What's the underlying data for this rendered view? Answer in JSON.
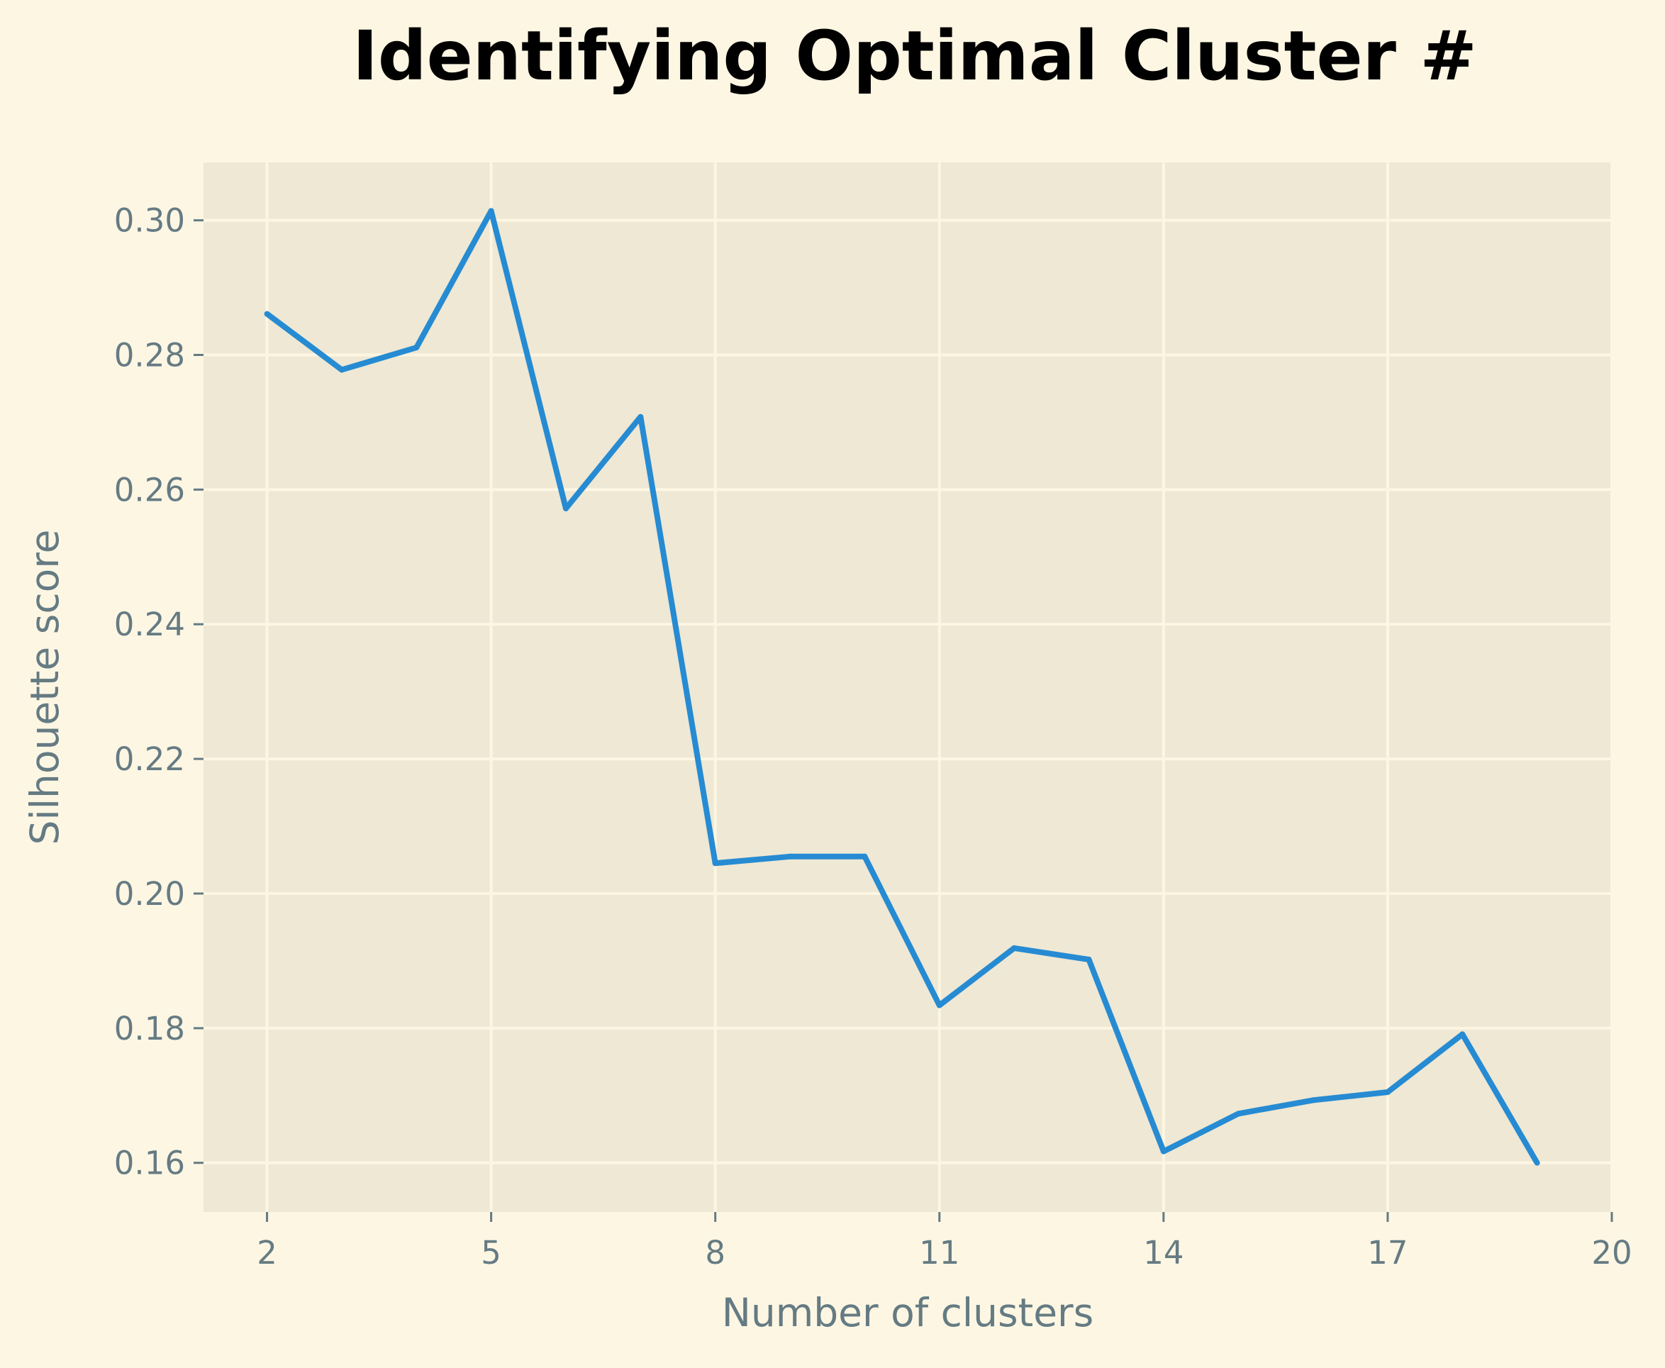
{
  "colors": {
    "background": "#fdf6e3",
    "plot_background": "#eee8d5",
    "grid": "#fdf6e3",
    "line": "#268bd2",
    "text": "#657b83",
    "title": "#000000"
  },
  "chart_data": {
    "type": "line",
    "title": "Identifying Optimal Cluster #",
    "xlabel": "Number of clusters",
    "ylabel": "Silhouette score",
    "xlim": [
      1.15,
      20
    ],
    "ylim": [
      0.1527,
      0.3086
    ],
    "xticks": [
      2,
      5,
      8,
      11,
      14,
      17,
      20
    ],
    "yticks": [
      0.16,
      0.18,
      0.2,
      0.22,
      0.24,
      0.26,
      0.28,
      0.3
    ],
    "ytick_labels": [
      "0.16",
      "0.18",
      "0.20",
      "0.22",
      "0.24",
      "0.26",
      "0.28",
      "0.30"
    ],
    "grid": true,
    "legend": "none",
    "series": [
      {
        "x": [
          2,
          3,
          4,
          5,
          6,
          7,
          8,
          9,
          10,
          11,
          12,
          13,
          14,
          15,
          16,
          17,
          18,
          19
        ],
        "values": [
          0.2861,
          0.2778,
          0.2811,
          0.3014,
          0.2572,
          0.2708,
          0.2045,
          0.2055,
          0.2055,
          0.1834,
          0.1919,
          0.1902,
          0.1617,
          0.1673,
          0.1693,
          0.1705,
          0.1791,
          0.16
        ]
      }
    ]
  }
}
